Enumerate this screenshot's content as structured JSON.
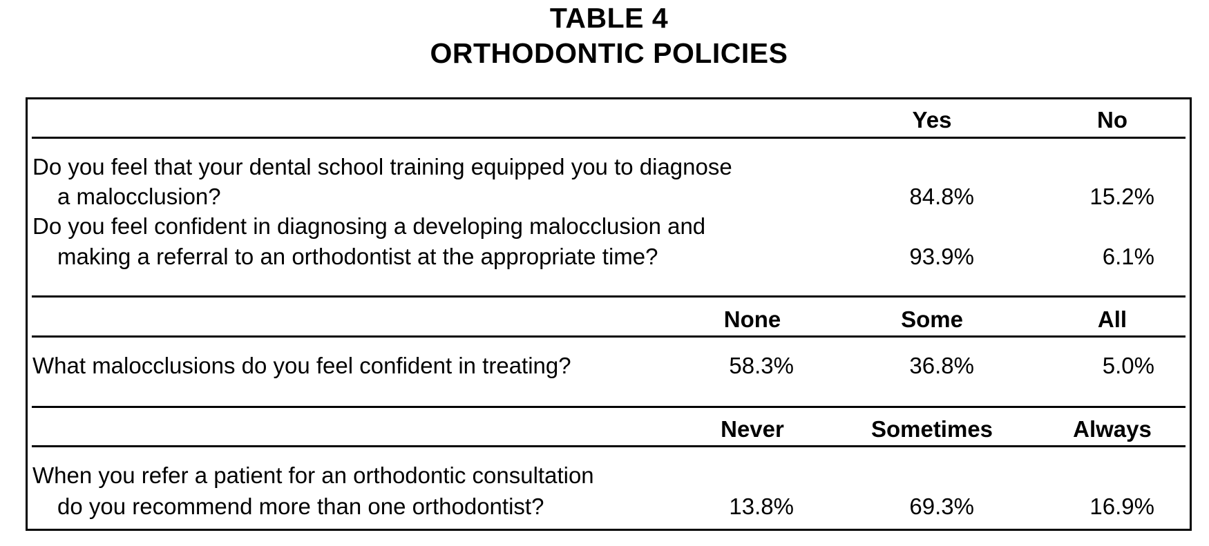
{
  "title": {
    "line1": "TABLE 4",
    "line2": "ORTHODONTIC POLICIES"
  },
  "sections": [
    {
      "headers": [
        "Yes",
        "No"
      ],
      "rows": [
        {
          "question_line1": "Do you feel that your dental school training equipped you to diagnose",
          "question_line2": "a malocclusion?",
          "values": [
            "84.8%",
            "15.2%"
          ]
        },
        {
          "question_line1": "Do you feel confident in diagnosing a developing malocclusion and",
          "question_line2": "making a referral to an orthodontist at the appropriate time?",
          "values": [
            "93.9%",
            "6.1%"
          ]
        }
      ]
    },
    {
      "headers": [
        "None",
        "Some",
        "All"
      ],
      "rows": [
        {
          "question_line1": "What malocclusions do you feel confident in treating?",
          "values": [
            "58.3%",
            "36.8%",
            "5.0%"
          ]
        }
      ]
    },
    {
      "headers": [
        "Never",
        "Sometimes",
        "Always"
      ],
      "rows": [
        {
          "question_line1": "When you refer a patient for an orthodontic consultation",
          "question_line2": "do you recommend more than one orthodontist?",
          "values": [
            "13.8%",
            "69.3%",
            "16.9%"
          ]
        }
      ]
    }
  ]
}
